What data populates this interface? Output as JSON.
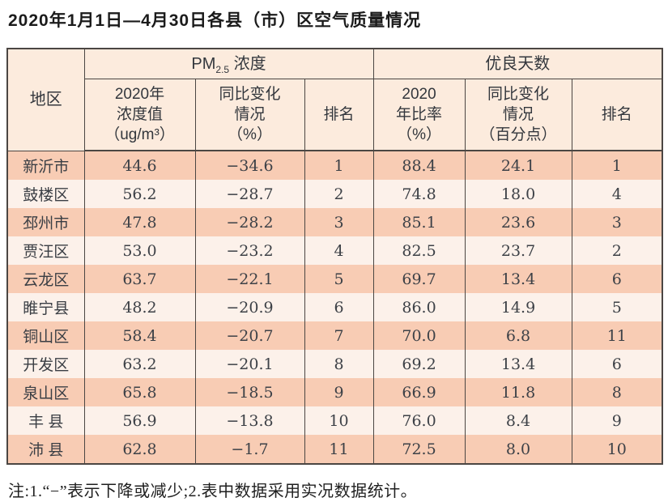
{
  "page": {
    "title": "2020年1月1日—4月30日各县（市）区空气质量情况",
    "note": "注:1.“−”表示下降或减少;2.表中数据采用实况数据统计。"
  },
  "colors": {
    "row_odd": "#f8ccb4",
    "row_even": "#fcf1ea",
    "header_bg": "#fcebdd",
    "border": "#4b4643"
  },
  "table": {
    "header": {
      "region": "地区",
      "pm_prefix": "PM",
      "pm_sub": "2.5",
      "pm_suffix": " 浓度",
      "good_days": "优良天数",
      "sub": [
        "2020年\n浓度值\n（ug/m³）",
        "同比变化\n情况\n（%）",
        "排名",
        "2020\n年比率\n（%）",
        "同比变化\n情况\n（百分点）",
        "排名"
      ]
    },
    "rows": [
      [
        "新沂市",
        "44.6",
        "−34.6",
        "1",
        "88.4",
        "24.1",
        "1"
      ],
      [
        "鼓楼区",
        "56.2",
        "−28.7",
        "2",
        "74.8",
        "18.0",
        "4"
      ],
      [
        "邳州市",
        "47.8",
        "−28.2",
        "3",
        "85.1",
        "23.6",
        "3"
      ],
      [
        "贾汪区",
        "53.0",
        "−23.2",
        "4",
        "82.5",
        "23.7",
        "2"
      ],
      [
        "云龙区",
        "63.7",
        "−22.1",
        "5",
        "69.7",
        "13.4",
        "6"
      ],
      [
        "睢宁县",
        "48.2",
        "−20.9",
        "6",
        "86.0",
        "14.9",
        "5"
      ],
      [
        "铜山区",
        "58.4",
        "−20.7",
        "7",
        "70.0",
        "6.8",
        "11"
      ],
      [
        "开发区",
        "63.2",
        "−20.1",
        "8",
        "69.2",
        "13.4",
        "6"
      ],
      [
        "泉山区",
        "65.8",
        "−18.5",
        "9",
        "66.9",
        "11.8",
        "8"
      ],
      [
        "丰 县",
        "56.9",
        "−13.8",
        "10",
        "76.0",
        "8.4",
        "9"
      ],
      [
        "沛 县",
        "62.8",
        "−1.7",
        "11",
        "72.5",
        "8.0",
        "10"
      ]
    ]
  }
}
